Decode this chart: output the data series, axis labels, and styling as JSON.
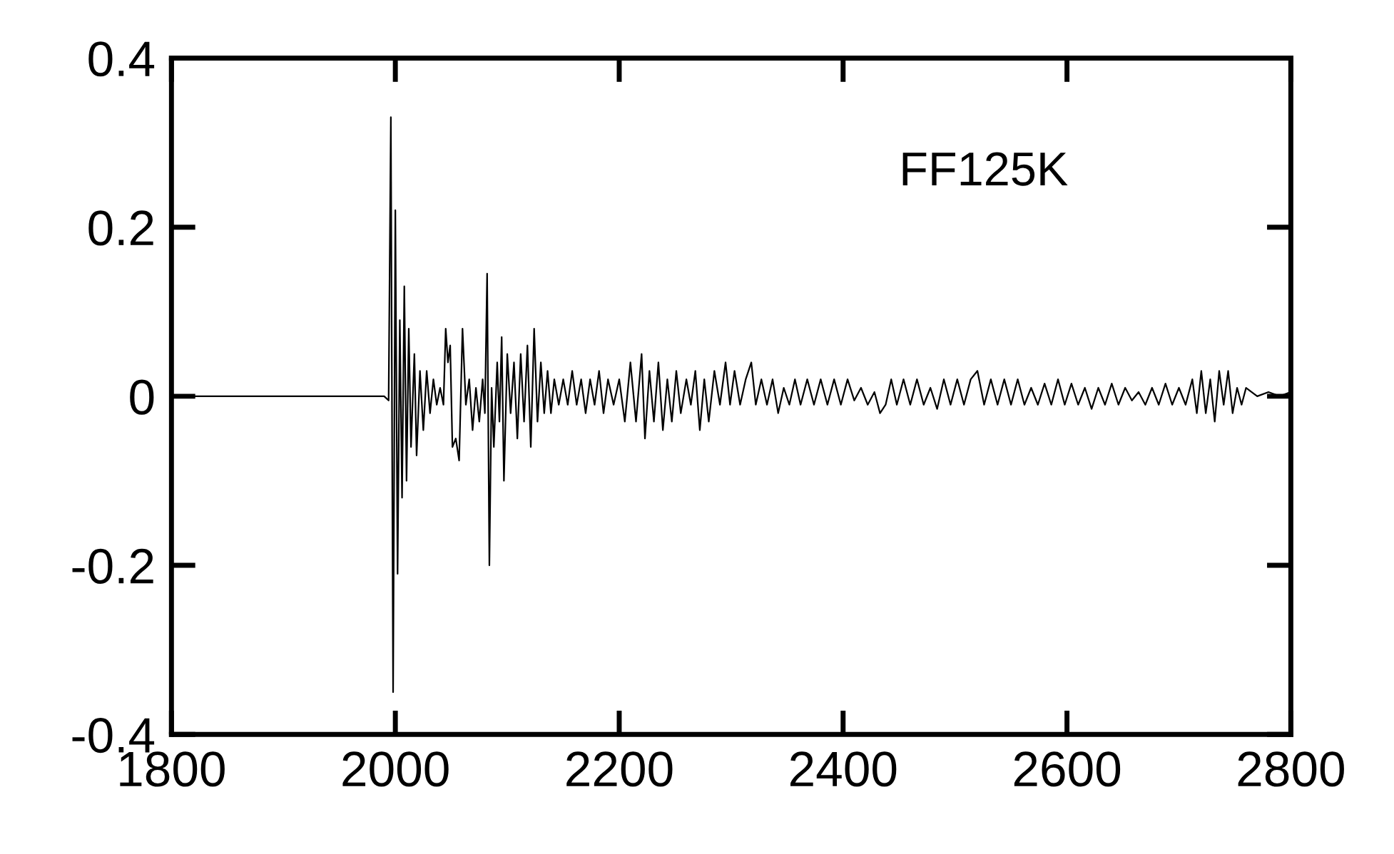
{
  "chart_data": {
    "type": "line",
    "annotations": [
      "FF125K"
    ],
    "x": [
      1800,
      1990,
      1994,
      1996,
      1998,
      2000,
      2002,
      2004,
      2006,
      2008,
      2010,
      2012,
      2014,
      2017,
      2019,
      2022,
      2025,
      2028,
      2031,
      2034,
      2037,
      2040,
      2043,
      2045,
      2047,
      2049,
      2051,
      2054,
      2057,
      2060,
      2063,
      2066,
      2069,
      2072,
      2075,
      2078,
      2080,
      2082,
      2084,
      2086,
      2088,
      2091,
      2093,
      2095,
      2097,
      2100,
      2103,
      2106,
      2109,
      2112,
      2115,
      2118,
      2121,
      2124,
      2127,
      2130,
      2133,
      2136,
      2139,
      2142,
      2146,
      2150,
      2154,
      2158,
      2162,
      2166,
      2170,
      2174,
      2178,
      2182,
      2186,
      2190,
      2195,
      2200,
      2205,
      2210,
      2215,
      2220,
      2223,
      2227,
      2231,
      2235,
      2239,
      2243,
      2247,
      2251,
      2255,
      2260,
      2264,
      2268,
      2272,
      2276,
      2280,
      2285,
      2290,
      2295,
      2299,
      2303,
      2308,
      2313,
      2318,
      2322,
      2327,
      2332,
      2337,
      2342,
      2347,
      2352,
      2357,
      2362,
      2368,
      2374,
      2380,
      2386,
      2392,
      2398,
      2404,
      2410,
      2416,
      2422,
      2428,
      2433,
      2438,
      2443,
      2448,
      2454,
      2460,
      2466,
      2472,
      2478,
      2484,
      2490,
      2496,
      2502,
      2508,
      2514,
      2520,
      2526,
      2532,
      2538,
      2544,
      2550,
      2556,
      2562,
      2568,
      2574,
      2580,
      2586,
      2592,
      2598,
      2604,
      2610,
      2616,
      2622,
      2628,
      2634,
      2640,
      2646,
      2652,
      2658,
      2664,
      2670,
      2676,
      2682,
      2688,
      2694,
      2700,
      2706,
      2712,
      2716,
      2720,
      2724,
      2728,
      2732,
      2736,
      2740,
      2744,
      2748,
      2752,
      2756,
      2760,
      2770,
      2780,
      2790,
      2800
    ],
    "values": [
      0,
      0,
      -0.005,
      0.33,
      -0.35,
      0.22,
      -0.21,
      0.09,
      -0.12,
      0.13,
      -0.1,
      0.08,
      -0.06,
      0.05,
      -0.07,
      0.03,
      -0.04,
      0.03,
      -0.02,
      0.02,
      -0.01,
      0.01,
      -0.01,
      0.08,
      0.04,
      0.06,
      -0.06,
      -0.05,
      -0.076,
      0.08,
      -0.01,
      0.02,
      -0.04,
      0.01,
      -0.03,
      0.02,
      -0.02,
      0.145,
      -0.2,
      0.01,
      -0.06,
      0.04,
      -0.03,
      0.07,
      -0.1,
      0.05,
      -0.02,
      0.04,
      -0.05,
      0.05,
      -0.03,
      0.06,
      -0.06,
      0.08,
      -0.03,
      0.04,
      -0.02,
      0.03,
      -0.02,
      0.02,
      -0.01,
      0.02,
      -0.01,
      0.03,
      -0.01,
      0.02,
      -0.02,
      0.02,
      -0.01,
      0.03,
      -0.02,
      0.02,
      -0.01,
      0.02,
      -0.03,
      0.04,
      -0.03,
      0.05,
      -0.05,
      0.03,
      -0.03,
      0.04,
      -0.04,
      0.02,
      -0.03,
      0.03,
      -0.02,
      0.02,
      -0.01,
      0.03,
      -0.04,
      0.02,
      -0.03,
      0.03,
      -0.01,
      0.04,
      -0.01,
      0.03,
      -0.01,
      0.02,
      0.04,
      -0.01,
      0.02,
      -0.01,
      0.02,
      -0.02,
      0.01,
      -0.01,
      0.02,
      -0.01,
      0.02,
      -0.01,
      0.02,
      -0.01,
      0.02,
      -0.01,
      0.02,
      -0.005,
      0.01,
      -0.01,
      0.005,
      -0.02,
      -0.01,
      0.02,
      -0.01,
      0.02,
      -0.01,
      0.02,
      -0.01,
      0.01,
      -0.015,
      0.02,
      -0.01,
      0.02,
      -0.01,
      0.02,
      0.03,
      -0.01,
      0.02,
      -0.01,
      0.02,
      -0.01,
      0.02,
      -0.01,
      0.01,
      -0.01,
      0.015,
      -0.01,
      0.02,
      -0.01,
      0.015,
      -0.01,
      0.01,
      -0.015,
      0.01,
      -0.01,
      0.015,
      -0.01,
      0.01,
      -0.005,
      0.005,
      -0.01,
      0.01,
      -0.01,
      0.015,
      -0.01,
      0.01,
      -0.01,
      0.02,
      -0.02,
      0.03,
      -0.02,
      0.02,
      -0.03,
      0.03,
      -0.01,
      0.03,
      -0.02,
      0.01,
      -0.01,
      0.01,
      0,
      0.005,
      0,
      0.005
    ],
    "color": "#000000",
    "xlim": [
      1800,
      2800
    ],
    "ylim": [
      -0.4,
      0.4
    ],
    "xticks": [
      1800,
      2000,
      2200,
      2400,
      2600,
      2800
    ],
    "yticks": [
      -0.4,
      -0.2,
      0,
      0.2,
      0.4
    ],
    "grid": false,
    "marker": "none",
    "line_style": "solid"
  }
}
